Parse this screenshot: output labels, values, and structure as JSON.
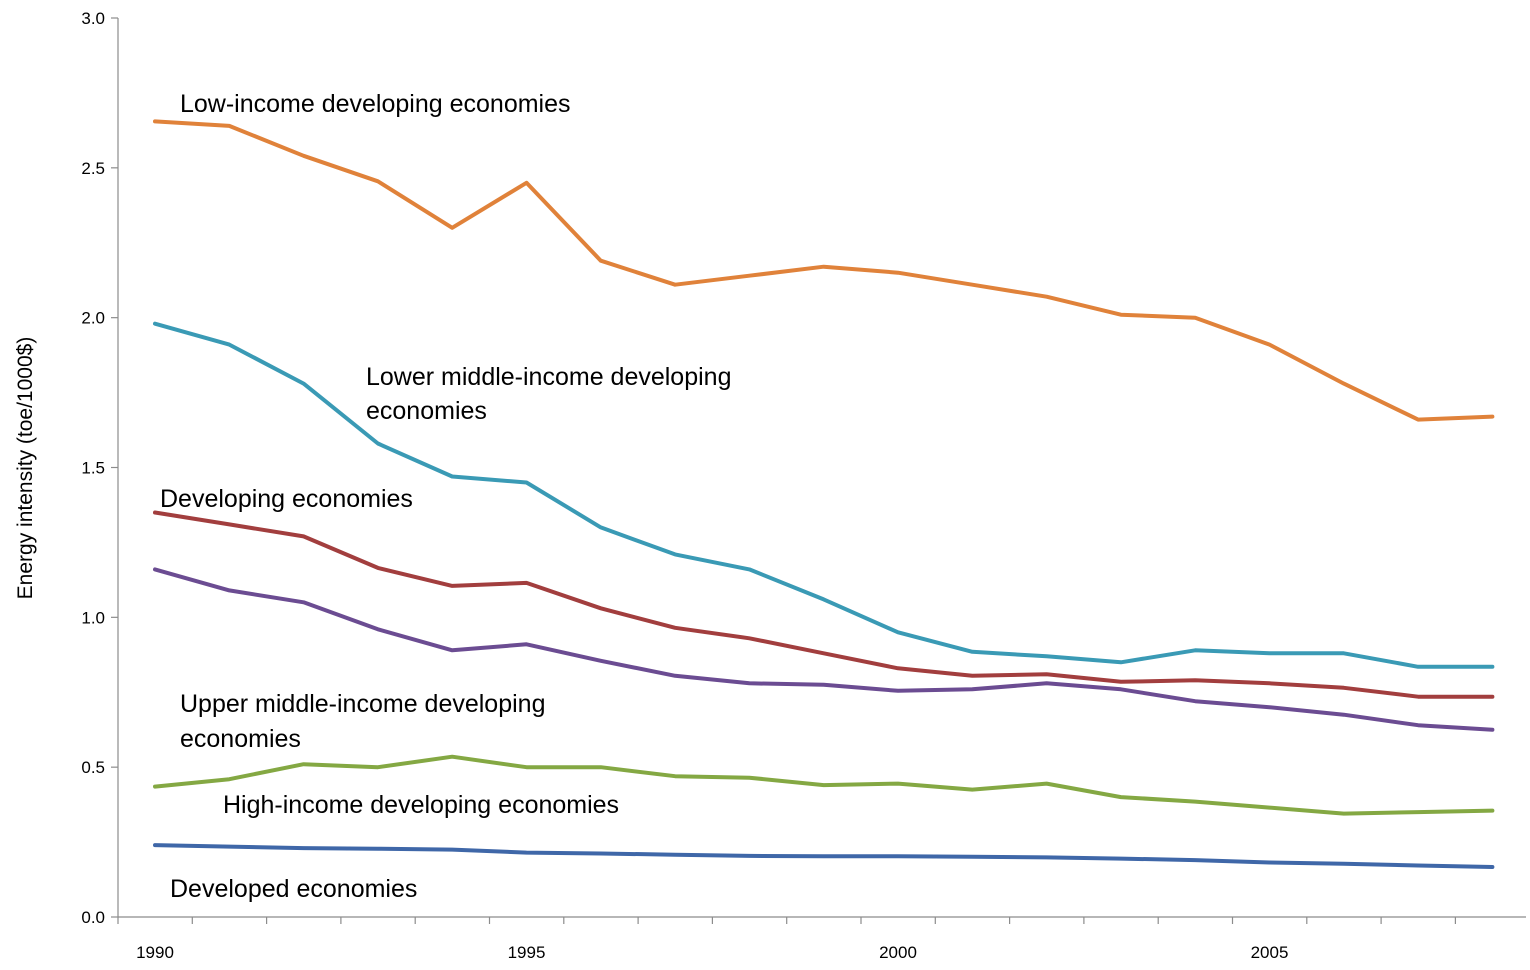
{
  "chart_data": {
    "type": "line",
    "title": "",
    "xlabel": "",
    "ylabel": "Energy intensity (toe/1000$)",
    "ylim": [
      0,
      3.0
    ],
    "xlim": [
      1990,
      2008
    ],
    "y_ticks": [
      "0.0",
      "0.5",
      "1.0",
      "1.5",
      "2.0",
      "2.5",
      "3.0"
    ],
    "x_ticks": [
      "1990",
      "1995",
      "2000",
      "2005"
    ],
    "grid": false,
    "legend": "none",
    "x": [
      1990,
      1991,
      1992,
      1993,
      1994,
      1995,
      1996,
      1997,
      1998,
      1999,
      2000,
      2001,
      2002,
      2003,
      2004,
      2005,
      2006,
      2007,
      2008
    ],
    "series": [
      {
        "name": "Low-income developing economies",
        "color": "#E0823A",
        "values": [
          2.655,
          2.64,
          2.54,
          2.455,
          2.3,
          2.45,
          2.19,
          2.11,
          2.14,
          2.17,
          2.15,
          2.11,
          2.07,
          2.01,
          2.0,
          1.91,
          1.78,
          1.66,
          1.67
        ]
      },
      {
        "name": "Lower middle-income developing economies",
        "color": "#3A9AB5",
        "values": [
          1.98,
          1.91,
          1.78,
          1.58,
          1.47,
          1.45,
          1.3,
          1.21,
          1.16,
          1.06,
          0.95,
          0.885,
          0.87,
          0.85,
          0.89,
          0.88,
          0.88,
          0.835,
          0.835
        ]
      },
      {
        "name": "Developing economies",
        "color": "#A23E3E",
        "values": [
          1.35,
          1.31,
          1.27,
          1.165,
          1.105,
          1.115,
          1.03,
          0.965,
          0.93,
          0.88,
          0.83,
          0.805,
          0.81,
          0.785,
          0.79,
          0.78,
          0.765,
          0.735,
          0.735
        ]
      },
      {
        "name": "Upper middle-income developing economies",
        "color": "#6B4C92",
        "values": [
          1.16,
          1.09,
          1.05,
          0.96,
          0.89,
          0.91,
          0.855,
          0.805,
          0.78,
          0.775,
          0.755,
          0.76,
          0.78,
          0.76,
          0.72,
          0.7,
          0.675,
          0.64,
          0.625
        ]
      },
      {
        "name": "High-income developing economies",
        "color": "#84A843",
        "values": [
          0.435,
          0.46,
          0.51,
          0.5,
          0.535,
          0.5,
          0.5,
          0.47,
          0.465,
          0.44,
          0.445,
          0.425,
          0.445,
          0.4,
          0.385,
          0.365,
          0.345,
          0.35,
          0.355
        ]
      },
      {
        "name": "Developed economies",
        "color": "#3F67A8",
        "values": [
          0.24,
          0.235,
          0.23,
          0.228,
          0.225,
          0.215,
          0.212,
          0.208,
          0.204,
          0.203,
          0.203,
          0.201,
          0.199,
          0.195,
          0.19,
          0.182,
          0.178,
          0.172,
          0.167
        ]
      }
    ],
    "annotations": [
      {
        "series": 0,
        "lines": [
          "Low-income developing economies"
        ]
      },
      {
        "series": 1,
        "lines": [
          "Lower middle-income developing",
          "economies"
        ]
      },
      {
        "series": 2,
        "lines": [
          "Developing economies"
        ]
      },
      {
        "series": 3,
        "lines": [
          "Upper middle-income developing",
          "economies"
        ]
      },
      {
        "series": 4,
        "lines": [
          "High-income developing economies"
        ]
      },
      {
        "series": 5,
        "lines": [
          "Developed economies"
        ]
      }
    ]
  }
}
